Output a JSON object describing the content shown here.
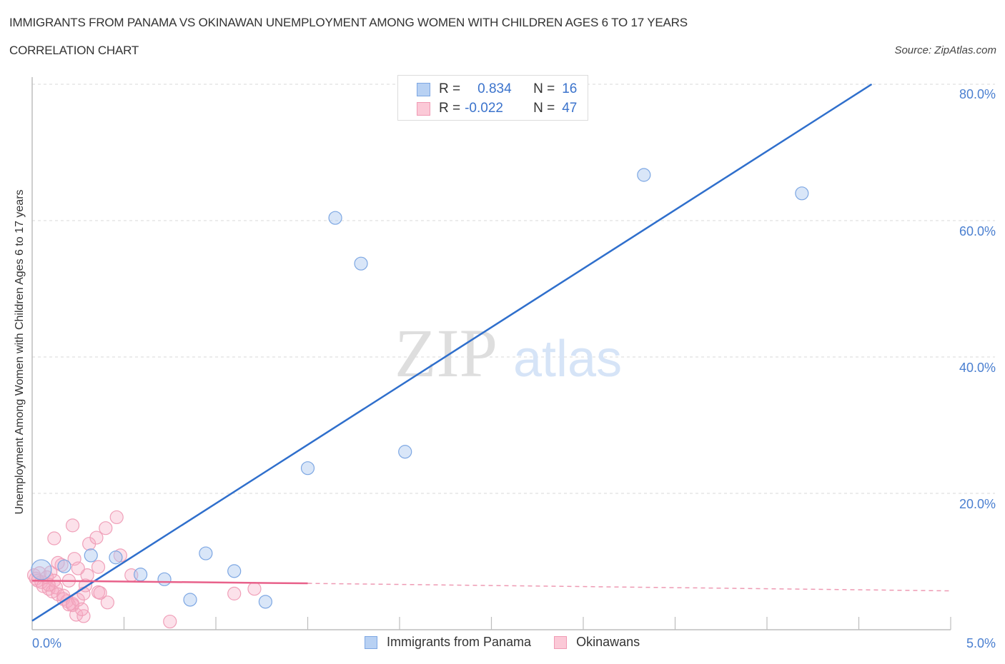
{
  "header": {
    "title": "IMMIGRANTS FROM PANAMA VS OKINAWAN UNEMPLOYMENT AMONG WOMEN WITH CHILDREN AGES 6 TO 17 YEARS",
    "subtitle": "CORRELATION CHART",
    "source": "Source: ZipAtlas.com"
  },
  "stats_legend": {
    "rows": [
      {
        "series": "Immigrants from Panama",
        "r_label": "R =",
        "r_value": "0.834",
        "n_label": "N =",
        "n_value": "16",
        "color": "#b8d1f3",
        "border": "#7da7e3"
      },
      {
        "series": "Okinawans",
        "r_label": "R =",
        "r_value": "-0.022",
        "n_label": "N =",
        "n_value": "47",
        "color": "#fbc9d7",
        "border": "#f09ab4"
      }
    ]
  },
  "legend": {
    "items": [
      {
        "label": "Immigrants from Panama",
        "color": "#b8d1f3",
        "border": "#7da7e3"
      },
      {
        "label": "Okinawans",
        "color": "#fbc9d7",
        "border": "#f09ab4"
      }
    ]
  },
  "axes": {
    "ylabel": "Unemployment Among Women with Children Ages 6 to 17 years",
    "y_ticks": [
      "80.0%",
      "60.0%",
      "40.0%",
      "20.0%"
    ],
    "x_tick_left": "0.0%",
    "x_tick_right": "5.0%"
  },
  "watermark": {
    "zip": "ZIP",
    "atlas": "atlas"
  },
  "chart_data": {
    "type": "scatter",
    "title": "Immigrants from Panama vs Okinawan Unemployment Among Women with Children Ages 6 to 17 years",
    "subtitle": "Correlation Chart",
    "xlabel": "",
    "ylabel": "Unemployment Among Women with Children Ages 6 to 17 years",
    "xlim": [
      0,
      5
    ],
    "ylim": [
      0,
      80
    ],
    "x_unit": "%",
    "y_unit": "%",
    "grid": "horizontal dashed at 20, 40, 60, 80",
    "legend_position": "bottom-center",
    "series": [
      {
        "name": "Immigrants from Panama",
        "color": "#7da7e3",
        "r": 0.834,
        "n": 16,
        "points": [
          [
            0.05,
            8.8
          ],
          [
            0.175,
            9.3
          ],
          [
            0.32,
            10.9
          ],
          [
            0.455,
            10.6
          ],
          [
            0.59,
            8.1
          ],
          [
            0.72,
            7.4
          ],
          [
            0.86,
            4.4
          ],
          [
            0.945,
            11.2
          ],
          [
            1.1,
            8.6
          ],
          [
            1.27,
            4.1
          ],
          [
            1.5,
            23.7
          ],
          [
            1.65,
            60.4
          ],
          [
            1.79,
            53.7
          ],
          [
            2.03,
            26.1
          ],
          [
            3.33,
            66.7
          ],
          [
            4.19,
            64.0
          ]
        ],
        "trend": {
          "x": [
            0,
            4.57
          ],
          "y": [
            1.3,
            80.0
          ],
          "style": "solid"
        }
      },
      {
        "name": "Okinawans",
        "color": "#f09ab4",
        "r": -0.022,
        "n": 47,
        "points": [
          [
            0.01,
            8.0
          ],
          [
            0.02,
            7.5
          ],
          [
            0.03,
            7.2
          ],
          [
            0.04,
            8.3
          ],
          [
            0.05,
            7.0
          ],
          [
            0.06,
            6.4
          ],
          [
            0.08,
            7.7
          ],
          [
            0.09,
            6.0
          ],
          [
            0.1,
            8.4
          ],
          [
            0.11,
            5.6
          ],
          [
            0.12,
            7.2
          ],
          [
            0.13,
            6.2
          ],
          [
            0.14,
            5.2
          ],
          [
            0.16,
            9.5
          ],
          [
            0.17,
            5.0
          ],
          [
            0.19,
            4.2
          ],
          [
            0.17,
            4.5
          ],
          [
            0.2,
            7.2
          ],
          [
            0.22,
            3.8
          ],
          [
            0.24,
            2.2
          ],
          [
            0.22,
            3.6
          ],
          [
            0.2,
            3.7
          ],
          [
            0.25,
            4.4
          ],
          [
            0.28,
            2.0
          ],
          [
            0.3,
            8.0
          ],
          [
            0.12,
            13.4
          ],
          [
            0.22,
            15.3
          ],
          [
            0.23,
            10.4
          ],
          [
            0.28,
            5.3
          ],
          [
            0.29,
            6.5
          ],
          [
            0.31,
            12.6
          ],
          [
            0.35,
            13.5
          ],
          [
            0.36,
            9.2
          ],
          [
            0.36,
            5.5
          ],
          [
            0.4,
            14.9
          ],
          [
            0.41,
            4.0
          ],
          [
            0.46,
            16.5
          ],
          [
            0.48,
            10.9
          ],
          [
            0.54,
            8.0
          ],
          [
            0.37,
            5.4
          ],
          [
            0.27,
            3.0
          ],
          [
            0.75,
            1.2
          ],
          [
            1.1,
            5.3
          ],
          [
            1.21,
            6.0
          ],
          [
            0.14,
            9.8
          ],
          [
            0.25,
            9.0
          ],
          [
            0.09,
            6.6
          ]
        ],
        "trend": {
          "x": [
            0,
            1.5
          ],
          "y": [
            7.2,
            6.8
          ],
          "style": "solid",
          "extension": {
            "x": [
              1.5,
              5.0
            ],
            "y": [
              6.8,
              5.7
            ],
            "style": "dashed"
          }
        }
      }
    ]
  }
}
